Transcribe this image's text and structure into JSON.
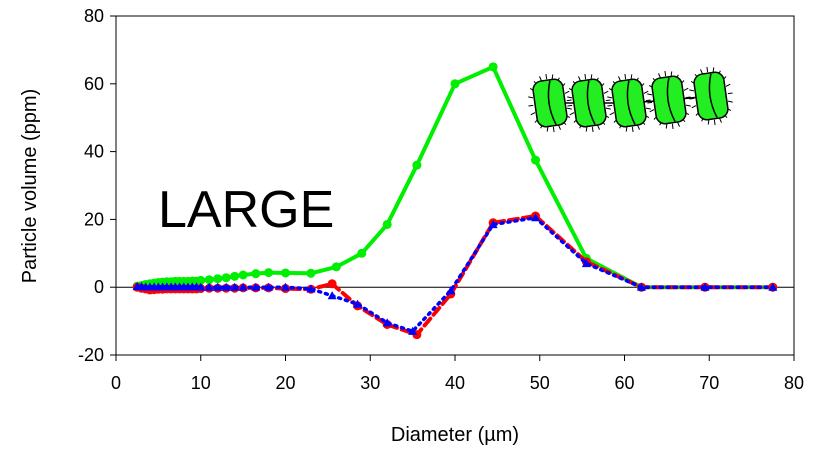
{
  "chart_data": {
    "type": "line",
    "xlabel": "Diameter (µm)",
    "ylabel": "Particle volume (ppm)",
    "annotation": "LARGE",
    "xlim": [
      0,
      80
    ],
    "ylim": [
      -20,
      80
    ],
    "xticks": [
      0,
      10,
      20,
      30,
      40,
      50,
      60,
      70,
      80
    ],
    "yticks": [
      -20,
      0,
      20,
      40,
      60,
      80
    ],
    "zero_line": true,
    "grid": false,
    "legend": "none",
    "series": [
      {
        "color": "#00ee00",
        "marker": "circle",
        "line": "solid",
        "x": [
          2.5,
          3,
          3.5,
          4,
          4.5,
          5,
          5.5,
          6,
          6.5,
          7,
          7.5,
          8,
          8.5,
          9,
          9.5,
          10,
          11,
          12,
          13,
          14,
          15,
          16.5,
          18,
          20,
          23,
          26,
          29,
          32,
          35.5,
          40,
          44.5,
          49.5,
          55.5,
          62,
          69.5,
          77.5
        ],
        "y": [
          0.3,
          0.5,
          0.8,
          1,
          1.2,
          1.4,
          1.5,
          1.6,
          1.6,
          1.7,
          1.7,
          1.7,
          1.7,
          1.8,
          1.8,
          2,
          2.2,
          2.5,
          2.8,
          3.2,
          3.6,
          4,
          4.3,
          4.2,
          4.1,
          6,
          10,
          18.5,
          36,
          60,
          65,
          37.5,
          8.5,
          0,
          0,
          0
        ]
      },
      {
        "color": "#ff0000",
        "marker": "circle",
        "line": "dashed",
        "x": [
          2.5,
          3,
          3.5,
          4,
          4.5,
          5,
          5.5,
          6,
          6.5,
          7,
          7.5,
          8,
          8.5,
          9,
          9.5,
          10,
          11,
          12,
          13,
          14,
          15,
          16.5,
          18,
          20,
          23,
          25.5,
          28.5,
          32,
          35.5,
          39.5,
          44.5,
          49.5,
          55.5,
          62,
          69.5,
          77.5
        ],
        "y": [
          0,
          -0.3,
          -0.5,
          -0.8,
          -0.7,
          -0.6,
          -0.6,
          -0.5,
          -0.5,
          -0.5,
          -0.5,
          -0.5,
          -0.5,
          -0.5,
          -0.5,
          -0.4,
          -0.3,
          -0.3,
          -0.3,
          -0.3,
          -0.2,
          -0.2,
          -0.2,
          -0.4,
          -0.6,
          1,
          -5.5,
          -11,
          -14,
          -2,
          19,
          21,
          7.5,
          0,
          0,
          0
        ]
      },
      {
        "color": "#0000ff",
        "marker": "triangle",
        "line": "dotted",
        "x": [
          2.5,
          3,
          3.5,
          4,
          4.5,
          5,
          5.5,
          6,
          6.5,
          7,
          7.5,
          8,
          8.5,
          9,
          9.5,
          10,
          11,
          12,
          13,
          14,
          15,
          16.5,
          18,
          20,
          23,
          25.5,
          28.5,
          32,
          35,
          39.5,
          44.5,
          49.5,
          55.5,
          62,
          69.5,
          77.5
        ],
        "y": [
          0.2,
          0.2,
          0.1,
          0.1,
          0.1,
          0.1,
          0.1,
          0.1,
          0.1,
          0.1,
          0.1,
          0.1,
          0.1,
          0.1,
          0.1,
          0,
          0,
          0,
          0,
          0,
          0,
          0,
          0,
          0,
          -0.5,
          -2.5,
          -5,
          -10.5,
          -13,
          -1,
          18.5,
          20.5,
          7,
          0,
          0,
          0
        ]
      }
    ]
  }
}
